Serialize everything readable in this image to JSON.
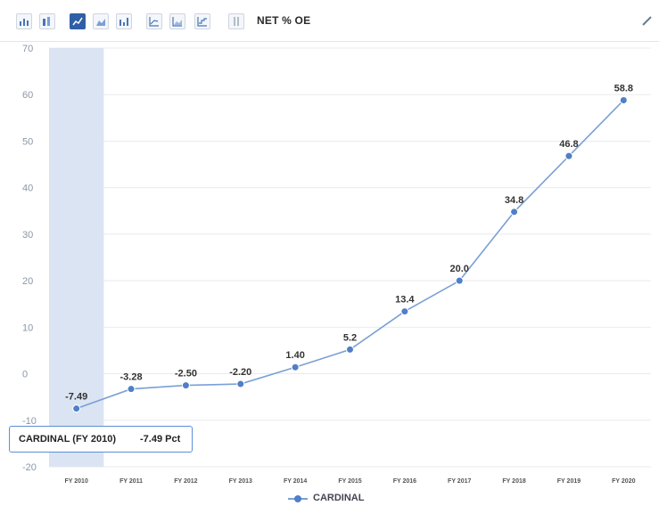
{
  "toolbar": {
    "title": "NET % OE",
    "buttons": [
      {
        "icon": "bar-chart-icon",
        "active": false
      },
      {
        "icon": "stacked-bar-icon",
        "active": false
      },
      {
        "icon": "line-chart-icon",
        "active": true
      },
      {
        "icon": "area-chart-icon",
        "active": false
      },
      {
        "icon": "column-chart-icon",
        "active": false
      },
      {
        "icon": "line-up-icon",
        "active": false
      },
      {
        "icon": "area-line-icon",
        "active": false
      },
      {
        "icon": "step-chart-icon",
        "active": false
      },
      {
        "icon": "sort-icon",
        "active": false
      }
    ],
    "edit_icon": "pencil-icon"
  },
  "tooltip": {
    "series": "CARDINAL (FY 2010)",
    "value": "-7.49 Pct"
  },
  "legend": {
    "label": "CARDINAL"
  },
  "colors": {
    "line": "#7a9fd6",
    "marker": "#4f7fc8",
    "highlight_band": "#dbe4f3",
    "grid": "#e8ebef",
    "active_button": "#2f5fa6"
  },
  "chart_data": {
    "type": "line",
    "title": "NET % OE",
    "categories": [
      "FY 2010",
      "FY 2011",
      "FY 2012",
      "FY 2013",
      "FY 2014",
      "FY 2015",
      "FY 2016",
      "FY 2017",
      "FY 2018",
      "FY 2019",
      "FY 2020"
    ],
    "series": [
      {
        "name": "CARDINAL",
        "values": [
          -7.49,
          -3.28,
          -2.5,
          -2.2,
          1.4,
          5.2,
          13.4,
          20.0,
          34.8,
          46.8,
          58.8
        ],
        "labels": [
          "-7.49",
          "-3.28",
          "-2.50",
          "-2.20",
          "1.40",
          "5.2",
          "13.4",
          "20.0",
          "34.8",
          "46.8",
          "58.8"
        ]
      }
    ],
    "yticks": [
      -20,
      -10,
      0,
      10,
      20,
      30,
      40,
      50,
      60,
      70
    ],
    "ylim": [
      -20,
      70
    ],
    "highlighted_category": "FY 2010",
    "grid": true,
    "legend_position": "bottom"
  }
}
